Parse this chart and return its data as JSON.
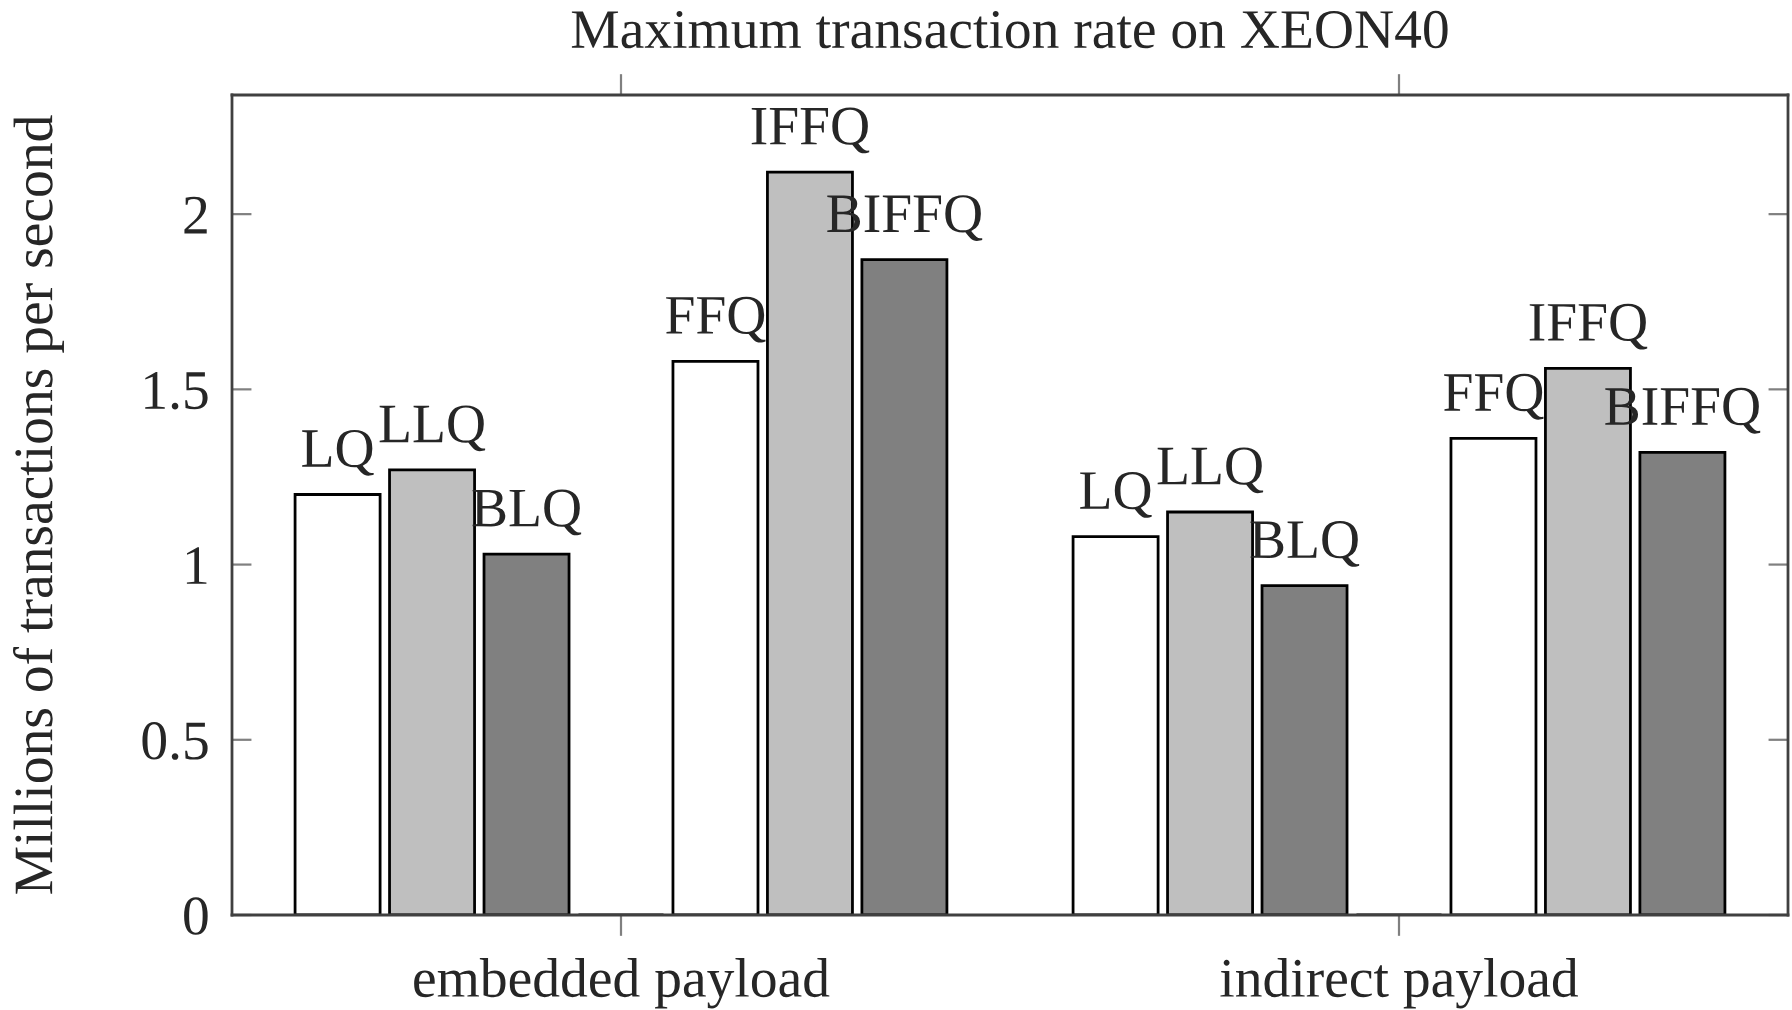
{
  "chart_data": {
    "type": "bar",
    "title": "Maximum transaction rate on XEON40",
    "ylabel": "Millions of transactions per second",
    "categories": [
      "embedded payload",
      "indirect payload"
    ],
    "series": [
      {
        "name": "LQ",
        "color": "#ffffff",
        "values": [
          1.2,
          1.08
        ]
      },
      {
        "name": "LLQ",
        "color": "#bfbfbf",
        "values": [
          1.27,
          1.15
        ]
      },
      {
        "name": "BLQ",
        "color": "#808080",
        "values": [
          1.03,
          0.94
        ]
      },
      {
        "color": "#000000",
        "values": [
          0,
          0
        ]
      },
      {
        "name": "FFQ",
        "color": "#ffffff",
        "values": [
          1.58,
          1.36
        ]
      },
      {
        "name": "IFFQ",
        "color": "#bfbfbf",
        "values": [
          2.12,
          1.56
        ]
      },
      {
        "name": "BIFFQ",
        "color": "#808080",
        "values": [
          1.87,
          1.32
        ]
      }
    ],
    "ylim": [
      0,
      2.34
    ],
    "yticks": [
      0,
      0.5,
      1,
      1.5,
      2
    ]
  }
}
